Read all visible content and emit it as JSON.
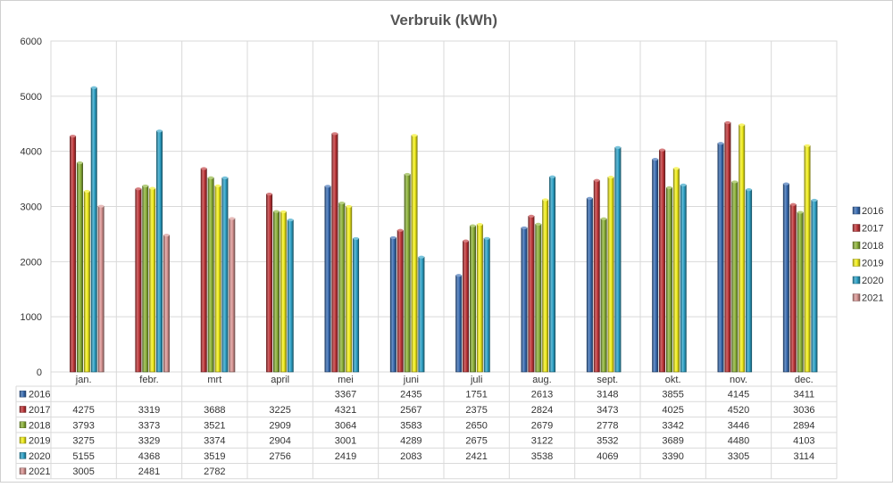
{
  "chart_data": {
    "type": "bar",
    "title": "Verbruik (kWh)",
    "xlabel": "",
    "ylabel": "",
    "ylim": [
      0,
      6000
    ],
    "yticks": [
      0,
      1000,
      2000,
      3000,
      4000,
      5000,
      6000
    ],
    "grid": true,
    "legend": "right",
    "categories": [
      "jan.",
      "febr.",
      "mrt",
      "april",
      "mei",
      "juni",
      "juli",
      "aug.",
      "sept.",
      "okt.",
      "nov.",
      "dec."
    ],
    "series": [
      {
        "name": "2016",
        "color": "#3a6db3",
        "values": [
          null,
          null,
          null,
          null,
          3367,
          2435,
          1751,
          2613,
          3148,
          3855,
          4145,
          3411
        ]
      },
      {
        "name": "2017",
        "color": "#c0373a",
        "values": [
          4275,
          3319,
          3688,
          3225,
          4321,
          2567,
          2375,
          2824,
          3473,
          4025,
          4520,
          3036
        ]
      },
      {
        "name": "2018",
        "color": "#8db33a",
        "values": [
          3793,
          3373,
          3521,
          2909,
          3064,
          3583,
          2650,
          2679,
          2778,
          3342,
          3446,
          2894
        ]
      },
      {
        "name": "2019",
        "color": "#f2ee1c",
        "values": [
          3275,
          3329,
          3374,
          2904,
          3001,
          4289,
          2675,
          3122,
          3532,
          3689,
          4480,
          4103
        ]
      },
      {
        "name": "2020",
        "color": "#2fa3c8",
        "values": [
          5155,
          4368,
          3519,
          2756,
          2419,
          2083,
          2421,
          3538,
          4069,
          3390,
          3305,
          3114
        ]
      },
      {
        "name": "2021",
        "color": "#d99694",
        "values": [
          3005,
          2481,
          2782,
          null,
          null,
          null,
          null,
          null,
          null,
          null,
          null,
          null
        ]
      }
    ]
  }
}
